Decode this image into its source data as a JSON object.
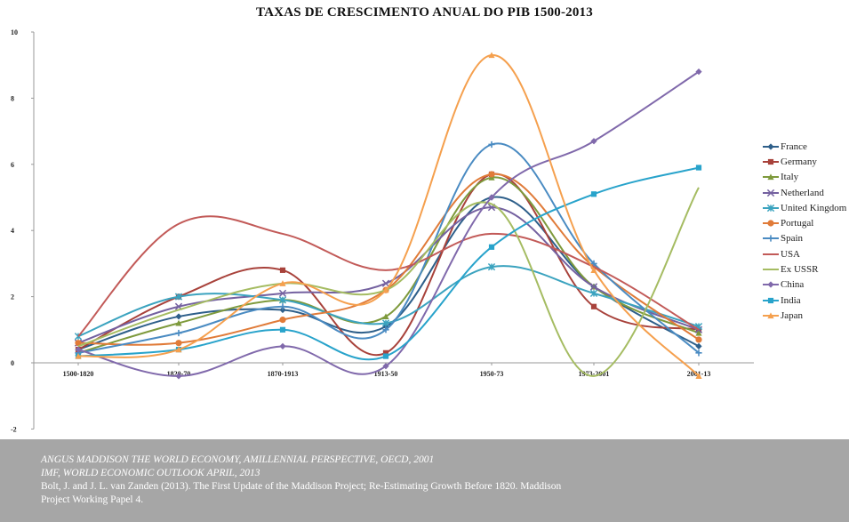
{
  "chart_data": {
    "type": "line",
    "title": "TAXAS DE CRESCIMENTO ANUAL DO PIB 1500-2013",
    "categories": [
      "1500-1820",
      "1820-70",
      "1870-1913",
      "1913-50",
      "1950-73",
      "1973-2001",
      "2001-13"
    ],
    "ylim": [
      -2,
      10
    ],
    "yticks": [
      -2,
      0,
      2,
      4,
      6,
      8,
      10
    ],
    "ytick_labels": [
      "-2",
      "0",
      "2",
      "4",
      "6",
      "8",
      "10"
    ],
    "grid": false,
    "legend_position": "right",
    "series": [
      {
        "name": "France",
        "color": "#2e5f8a",
        "marker": "diamond",
        "values": [
          0.4,
          1.4,
          1.6,
          1.1,
          5.0,
          2.3,
          0.5
        ]
      },
      {
        "name": "Germany",
        "color": "#a8423b",
        "marker": "square",
        "values": [
          0.4,
          2.0,
          2.8,
          0.3,
          5.7,
          1.7,
          1.0
        ]
      },
      {
        "name": "Italy",
        "color": "#7e9a3c",
        "marker": "triangle",
        "values": [
          0.3,
          1.2,
          1.9,
          1.4,
          5.6,
          2.3,
          0.9
        ]
      },
      {
        "name": "Netherland",
        "color": "#7461a0",
        "marker": "x",
        "values": [
          0.6,
          1.7,
          2.1,
          2.4,
          4.7,
          2.3,
          1.0
        ]
      },
      {
        "name": "United Kingdom",
        "color": "#3ba3bf",
        "marker": "star",
        "values": [
          0.8,
          2.0,
          1.9,
          1.2,
          2.9,
          2.1,
          1.1
        ]
      },
      {
        "name": "Portugal",
        "color": "#e07b39",
        "marker": "circle",
        "values": [
          0.6,
          0.6,
          1.3,
          2.2,
          5.7,
          2.9,
          0.7
        ]
      },
      {
        "name": "Spain",
        "color": "#4a8bc2",
        "marker": "plus",
        "values": [
          0.3,
          0.9,
          1.7,
          1.0,
          6.6,
          3.0,
          0.3
        ]
      },
      {
        "name": "USA",
        "color": "#c25a58",
        "marker": "none",
        "values": [
          0.8,
          4.2,
          3.9,
          2.8,
          3.9,
          2.9,
          1.0
        ]
      },
      {
        "name": "Ex USSR",
        "color": "#a5bc62",
        "marker": "none",
        "values": [
          0.5,
          1.6,
          2.4,
          2.2,
          4.8,
          -0.4,
          5.3
        ]
      },
      {
        "name": "China",
        "color": "#8069ab",
        "marker": "diamond",
        "values": [
          0.4,
          -0.4,
          0.5,
          -0.1,
          5.0,
          6.7,
          8.8
        ]
      },
      {
        "name": "India",
        "color": "#28a3cb",
        "marker": "square",
        "values": [
          0.2,
          0.4,
          1.0,
          0.2,
          3.5,
          5.1,
          5.9
        ]
      },
      {
        "name": "Japan",
        "color": "#f5a04e",
        "marker": "triangle",
        "values": [
          0.2,
          0.4,
          2.4,
          2.2,
          9.3,
          2.8,
          -0.4
        ]
      }
    ]
  },
  "footer": {
    "lines": [
      "ANGUS MADDISON THE WORLD ECONOMY, AMILLENNIAL PERSPECTIVE, OECD, 2001",
      "IMF, WORLD ECONOMIC OUTLOOK APRIL, 2013",
      "Bolt, J. and J. L. van Zanden (2013). The First Update of the Maddison Project; Re-Estimating Growth Before 1820. Maddison",
      "Project Working Papel 4."
    ]
  }
}
